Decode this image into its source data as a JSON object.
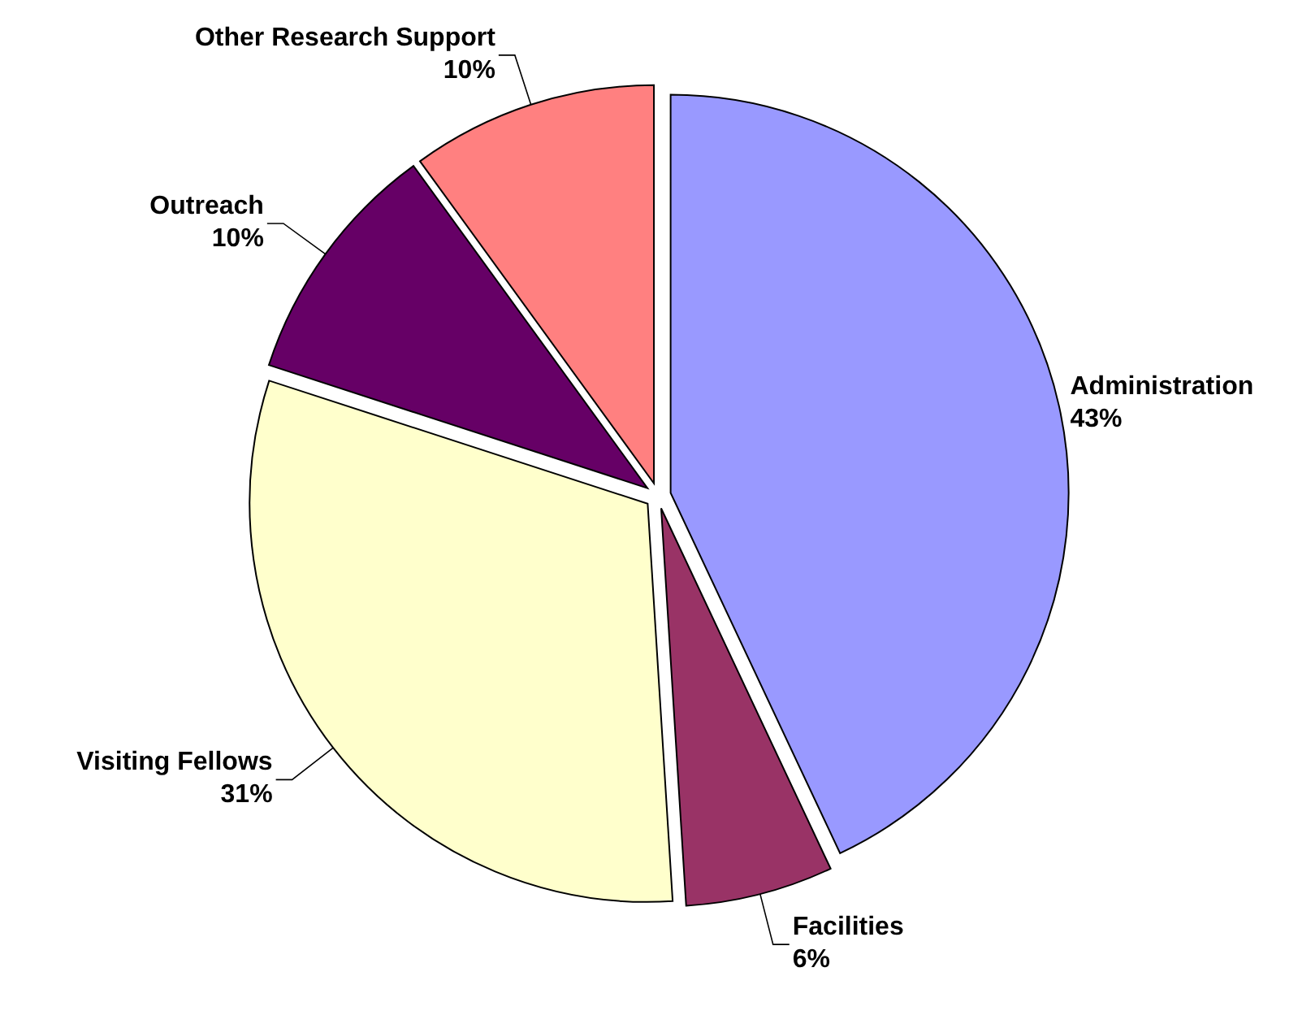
{
  "chart_data": {
    "type": "pie",
    "categories": [
      "Administration",
      "Facilities",
      "Visiting Fellows",
      "Outreach",
      "Other Research Support"
    ],
    "values": [
      43,
      6,
      31,
      10,
      10
    ],
    "colors": [
      "#9999ff",
      "#993366",
      "#ffffcc",
      "#660066",
      "#ff8080"
    ],
    "value_labels": [
      "43%",
      "6%",
      "31%",
      "10%",
      "10%"
    ],
    "legend": false
  }
}
